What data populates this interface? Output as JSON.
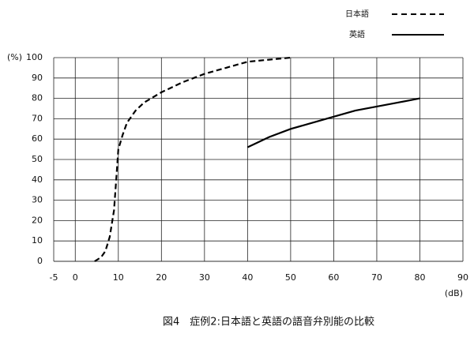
{
  "chart_data": {
    "type": "line",
    "title": "図4　症例2:日本語と英語の語音弁別能の比較",
    "x_label": "(dB)",
    "y_label": "(%)",
    "xlim": [
      -5,
      90
    ],
    "ylim": [
      0,
      100
    ],
    "xticks": [
      -5,
      0,
      10,
      20,
      30,
      40,
      50,
      60,
      70,
      80,
      90
    ],
    "yticks": [
      0,
      10,
      20,
      30,
      40,
      50,
      60,
      70,
      80,
      90,
      100
    ],
    "grid": true,
    "series": [
      {
        "name": "日本語",
        "color": "#000000",
        "dash": true,
        "x": [
          4.5,
          6,
          7,
          8,
          9,
          9.5,
          10,
          11,
          12,
          14,
          16,
          20,
          25,
          30,
          35,
          40,
          45,
          50
        ],
        "values": [
          0,
          2,
          5,
          12,
          25,
          40,
          55,
          62,
          68,
          74,
          78,
          83,
          88,
          92,
          95,
          98,
          99,
          100
        ]
      },
      {
        "name": "英語",
        "color": "#000000",
        "dash": false,
        "x": [
          40,
          42,
          45,
          50,
          55,
          60,
          65,
          70,
          75,
          80
        ],
        "values": [
          56,
          58,
          61,
          65,
          68,
          71,
          74,
          76,
          78,
          80
        ]
      }
    ]
  }
}
